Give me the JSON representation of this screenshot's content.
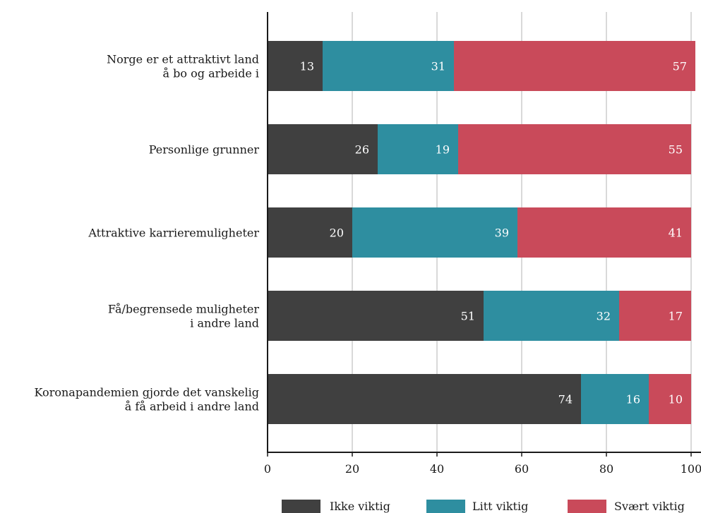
{
  "chart_data": {
    "type": "bar",
    "orientation": "horizontal",
    "stacked": true,
    "categories": [
      [
        "Norge er et attraktivt land",
        "å bo og arbeide i"
      ],
      [
        "Personlige grunner"
      ],
      [
        "Attraktive karrieremuligheter"
      ],
      [
        "Få/begrensede muligheter",
        "i andre land"
      ],
      [
        "Koronapandemien gjorde det vanskelig",
        "å få arbeid i andre land"
      ]
    ],
    "series": [
      {
        "name": "Ikke viktig",
        "color": "#404040",
        "values": [
          13,
          26,
          20,
          51,
          74
        ]
      },
      {
        "name": "Litt viktig",
        "color": "#2e8ea0",
        "values": [
          31,
          19,
          39,
          32,
          16
        ]
      },
      {
        "name": "Svært viktig",
        "color": "#c94a5a",
        "values": [
          57,
          55,
          41,
          17,
          10
        ]
      }
    ],
    "xlim": [
      0,
      100
    ],
    "xticks": [
      0,
      20,
      40,
      60,
      80,
      100
    ],
    "grid": true,
    "legend": "bottom"
  }
}
